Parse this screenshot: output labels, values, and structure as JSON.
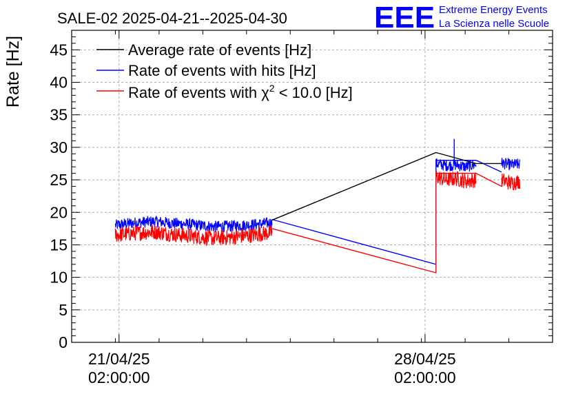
{
  "chart_data": {
    "type": "line",
    "title": "SALE-02 2025-04-21--2025-04-30",
    "ylabel": "Rate [Hz]",
    "xlabel": "",
    "ylim": [
      0,
      48
    ],
    "y_ticks": [
      0,
      5,
      10,
      15,
      20,
      25,
      30,
      35,
      40,
      45
    ],
    "x_ticks": [
      {
        "label_date": "21/04/25",
        "label_time": "02:00:00",
        "x": "2025-04-21T02:00:00"
      },
      {
        "label_date": "28/04/25",
        "label_time": "02:00:00",
        "x": "2025-04-28T02:00:00"
      }
    ],
    "xlim": [
      "2025-04-20T00:00:00",
      "2025-05-01T00:00:00"
    ],
    "grid": true,
    "legend_position": "top-left",
    "series": [
      {
        "name": "Average rate of events [Hz]",
        "color": "#000000",
        "points": [
          [
            "2025-04-24T14:00:00",
            18.8
          ],
          [
            "2025-04-28T08:00:00",
            29.2
          ],
          [
            "2025-04-29T06:00:00",
            27.5
          ],
          [
            "2025-04-29T20:00:00",
            27.5
          ]
        ]
      },
      {
        "name": "Rate of events with hits [Hz]",
        "color": "#0000ff",
        "band": {
          "noise": 0.9,
          "segments": [
            {
              "start": "2025-04-21T00:00:00",
              "end": "2025-04-24T14:00:00",
              "values": [
                18.0,
                18.4,
                18.6,
                18.3,
                18.1,
                17.8,
                17.9,
                18.1,
                18.4
              ]
            },
            {
              "start": "2025-04-28T08:00:00",
              "end": "2025-04-29T06:00:00",
              "values": [
                27.5,
                27.2,
                27.3,
                27.0,
                27.4
              ]
            },
            {
              "start": "2025-04-29T20:00:00",
              "end": "2025-04-30T06:00:00",
              "values": [
                27.6,
                27.3,
                27.4
              ]
            }
          ]
        },
        "points": [
          [
            "2025-04-24T14:00:00",
            18.9
          ],
          [
            "2025-04-28T08:00:00",
            12.0
          ],
          [
            "2025-04-28T08:00:00",
            28.0
          ],
          [
            "2025-04-29T06:00:00",
            28.0
          ],
          [
            "2025-04-29T20:00:00",
            26.2
          ]
        ],
        "max": [
          "2025-04-28T18:00:00",
          31.3
        ]
      },
      {
        "name": "Rate of events with χ² < 10.0 [Hz]",
        "color": "#ff0000",
        "band": {
          "noise": 1.2,
          "segments": [
            {
              "start": "2025-04-21T00:00:00",
              "end": "2025-04-24T14:00:00",
              "values": [
                16.5,
                16.8,
                17.0,
                16.6,
                16.3,
                16.0,
                16.2,
                16.5,
                16.9
              ]
            },
            {
              "start": "2025-04-28T08:00:00",
              "end": "2025-04-29T06:00:00",
              "values": [
                25.5,
                25.0,
                25.2,
                24.8,
                25.0
              ]
            },
            {
              "start": "2025-04-29T20:00:00",
              "end": "2025-04-30T06:00:00",
              "values": [
                25.0,
                24.5,
                24.8
              ]
            }
          ]
        },
        "points": [
          [
            "2025-04-24T14:00:00",
            17.5
          ],
          [
            "2025-04-28T08:00:00",
            10.7
          ],
          [
            "2025-04-28T08:00:00",
            26.0
          ],
          [
            "2025-04-29T06:00:00",
            26.0
          ],
          [
            "2025-04-29T20:00:00",
            24.0
          ]
        ]
      }
    ]
  },
  "logo": {
    "mark": "EEE",
    "line1": "Extreme Energy Events",
    "line2": "La Scienza nelle Scuole",
    "color": "#0000ff"
  },
  "legend": {
    "entries": [
      {
        "text": "Average rate of events [Hz]",
        "color": "#000000"
      },
      {
        "text": "Rate of events with hits [Hz]",
        "color": "#0000ff"
      },
      {
        "pre": "Rate of events with ",
        "chi": "χ",
        "sup": "2",
        "post": " < 10.0 [Hz]",
        "color": "#ff0000"
      }
    ]
  }
}
